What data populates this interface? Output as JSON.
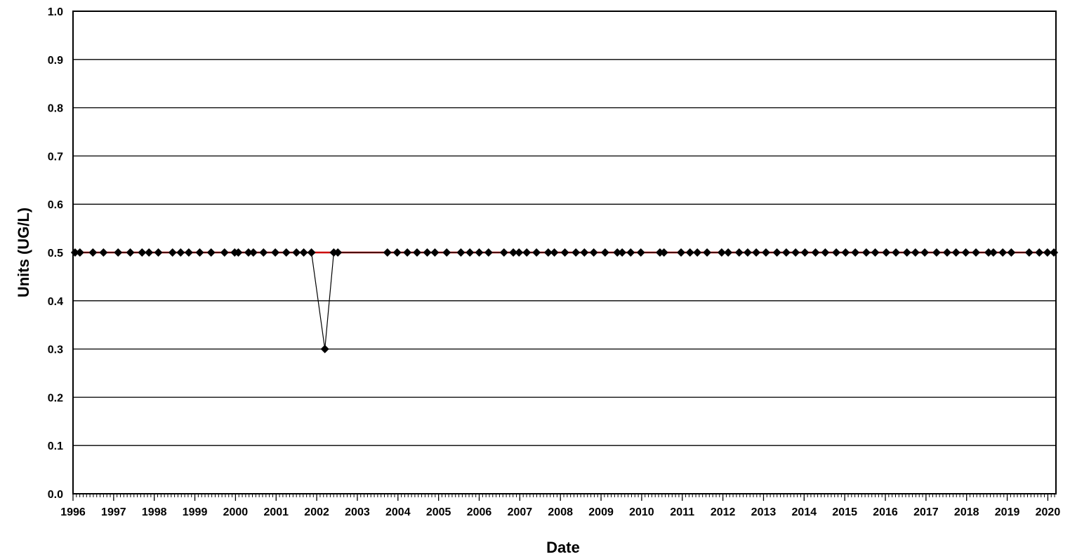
{
  "chart_data": {
    "type": "line",
    "title": "",
    "xlabel": "Date",
    "ylabel": "Units (UG/L)",
    "xlim": [
      1996.0,
      2020.2
    ],
    "ylim": [
      0.0,
      1.0
    ],
    "x_ticks": [
      "1996",
      "1997",
      "1998",
      "1999",
      "2000",
      "2001",
      "2002",
      "2003",
      "2004",
      "2005",
      "2006",
      "2007",
      "2008",
      "2009",
      "2010",
      "2011",
      "2012",
      "2013",
      "2014",
      "2015",
      "2016",
      "2017",
      "2018",
      "2019",
      "2020"
    ],
    "y_ticks": [
      "0.0",
      "0.1",
      "0.2",
      "0.3",
      "0.4",
      "0.5",
      "0.6",
      "0.7",
      "0.8",
      "0.9",
      "1.0"
    ],
    "grid": "horizontal",
    "legend": "none",
    "colors": {
      "series": "#000000",
      "reference_line": "#cc0000",
      "grid": "#000000"
    },
    "reference_line": {
      "y": 0.5
    },
    "series": [
      {
        "marker": "diamond",
        "x": [
          1996.05,
          1996.17,
          1996.49,
          1996.75,
          1997.11,
          1997.41,
          1997.7,
          1997.87,
          1998.1,
          1998.45,
          1998.65,
          1998.85,
          1999.12,
          1999.4,
          1999.73,
          1999.98,
          2000.07,
          2000.32,
          2000.44,
          2000.69,
          2000.98,
          2001.25,
          2001.5,
          2001.68,
          2001.87,
          2002.2,
          2002.42,
          2002.52,
          2003.74,
          2003.98,
          2004.23,
          2004.47,
          2004.72,
          2004.91,
          2005.2,
          2005.55,
          2005.77,
          2006.0,
          2006.23,
          2006.61,
          2006.84,
          2006.98,
          2007.17,
          2007.41,
          2007.7,
          2007.85,
          2008.11,
          2008.38,
          2008.59,
          2008.82,
          2009.1,
          2009.4,
          2009.52,
          2009.73,
          2009.98,
          2010.45,
          2010.55,
          2010.97,
          2011.19,
          2011.37,
          2011.61,
          2011.97,
          2012.13,
          2012.4,
          2012.61,
          2012.82,
          2013.06,
          2013.33,
          2013.56,
          2013.79,
          2014.02,
          2014.28,
          2014.52,
          2014.79,
          2015.02,
          2015.26,
          2015.53,
          2015.75,
          2016.02,
          2016.26,
          2016.53,
          2016.74,
          2016.97,
          2017.26,
          2017.52,
          2017.74,
          2017.98,
          2018.23,
          2018.54,
          2018.66,
          2018.89,
          2019.1,
          2019.54,
          2019.79,
          2019.99,
          2020.15
        ],
        "y": [
          0.5,
          0.5,
          0.5,
          0.5,
          0.5,
          0.5,
          0.5,
          0.5,
          0.5,
          0.5,
          0.5,
          0.5,
          0.5,
          0.5,
          0.5,
          0.5,
          0.5,
          0.5,
          0.5,
          0.5,
          0.5,
          0.5,
          0.5,
          0.5,
          0.5,
          0.3,
          0.5,
          0.5,
          0.5,
          0.5,
          0.5,
          0.5,
          0.5,
          0.5,
          0.5,
          0.5,
          0.5,
          0.5,
          0.5,
          0.5,
          0.5,
          0.5,
          0.5,
          0.5,
          0.5,
          0.5,
          0.5,
          0.5,
          0.5,
          0.5,
          0.5,
          0.5,
          0.5,
          0.5,
          0.5,
          0.5,
          0.5,
          0.5,
          0.5,
          0.5,
          0.5,
          0.5,
          0.5,
          0.5,
          0.5,
          0.5,
          0.5,
          0.5,
          0.5,
          0.5,
          0.5,
          0.5,
          0.5,
          0.5,
          0.5,
          0.5,
          0.5,
          0.5,
          0.5,
          0.5,
          0.5,
          0.5,
          0.5,
          0.5,
          0.5,
          0.5,
          0.5,
          0.5,
          0.5,
          0.5,
          0.5,
          0.5,
          0.5,
          0.5,
          0.5,
          0.5
        ]
      }
    ]
  }
}
